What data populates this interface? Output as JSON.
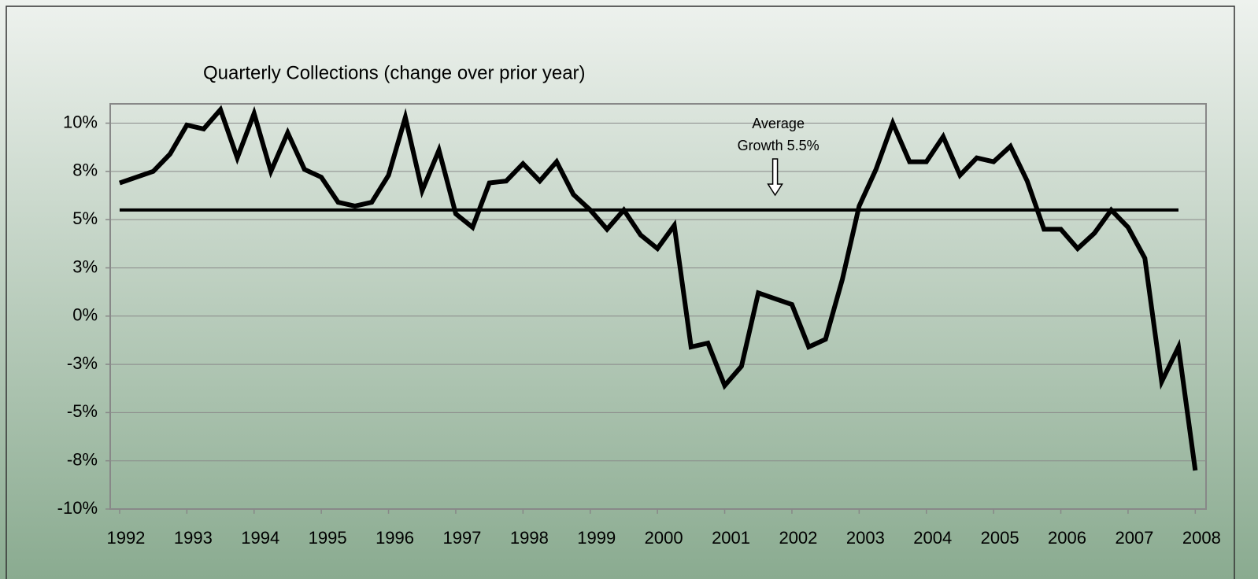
{
  "chart_data": {
    "type": "line",
    "title": "Quarterly Collections (change over prior year)",
    "x": [
      1992,
      1992.25,
      1992.5,
      1992.75,
      1993,
      1993.25,
      1993.5,
      1993.75,
      1994,
      1994.25,
      1994.5,
      1994.75,
      1995,
      1995.25,
      1995.5,
      1995.75,
      1996,
      1996.25,
      1996.5,
      1996.75,
      1997,
      1997.25,
      1997.5,
      1997.75,
      1998,
      1998.25,
      1998.5,
      1998.75,
      1999,
      1999.25,
      1999.5,
      1999.75,
      2000,
      2000.25,
      2000.5,
      2000.75,
      2001,
      2001.25,
      2001.5,
      2001.75,
      2002,
      2002.25,
      2002.5,
      2002.75,
      2003,
      2003.25,
      2003.5,
      2003.75,
      2004,
      2004.25,
      2004.5,
      2004.75,
      2005,
      2005.25,
      2005.5,
      2005.75,
      2006,
      2006.25,
      2006.5,
      2006.75,
      2007,
      2007.25,
      2007.5,
      2007.75,
      2008
    ],
    "series": [
      {
        "name": "Quarterly Collections",
        "color": "#000000",
        "values": [
          6.9,
          7.2,
          7.5,
          8.4,
          9.9,
          9.7,
          10.7,
          8.2,
          10.5,
          7.5,
          9.5,
          7.6,
          7.2,
          5.9,
          5.7,
          5.9,
          7.3,
          10.3,
          6.5,
          8.6,
          5.3,
          4.6,
          6.9,
          7.0,
          7.9,
          7.0,
          8.0,
          6.3,
          5.5,
          4.5,
          5.5,
          4.2,
          3.5,
          4.7,
          -1.6,
          -1.4,
          -3.6,
          -2.6,
          1.2,
          0.9,
          0.6,
          -1.6,
          -1.2,
          1.9,
          5.7,
          7.6,
          10.0,
          8.0,
          8.0,
          9.3,
          7.3,
          8.2,
          8.0,
          8.8,
          7.0,
          4.5,
          4.5,
          3.5,
          4.3,
          5.5,
          4.6,
          3.0,
          -3.4,
          -1.6,
          -8.0
        ]
      }
    ],
    "average": {
      "value": 5.5,
      "x": [
        1992,
        2007.75
      ],
      "annotation": [
        "Average",
        "Growth 5.5%"
      ],
      "arrow_x": 2001.75
    },
    "xlim": [
      1991.86,
      2008.16
    ],
    "xticks": [
      1992,
      1993,
      1994,
      1995,
      1996,
      1997,
      1998,
      1999,
      2000,
      2001,
      2002,
      2003,
      2004,
      2005,
      2006,
      2007,
      2008
    ],
    "ylim": [
      -10,
      11
    ],
    "yticks": [
      {
        "value": 10,
        "label": "10%"
      },
      {
        "value": 7.5,
        "label": "8%"
      },
      {
        "value": 5,
        "label": "5%"
      },
      {
        "value": 2.5,
        "label": "3%"
      },
      {
        "value": 0,
        "label": "0%"
      },
      {
        "value": -2.5,
        "label": "-3%"
      },
      {
        "value": -5,
        "label": "-5%"
      },
      {
        "value": -7.5,
        "label": "-8%"
      },
      {
        "value": -10,
        "label": "-10%"
      }
    ],
    "grid": true
  }
}
